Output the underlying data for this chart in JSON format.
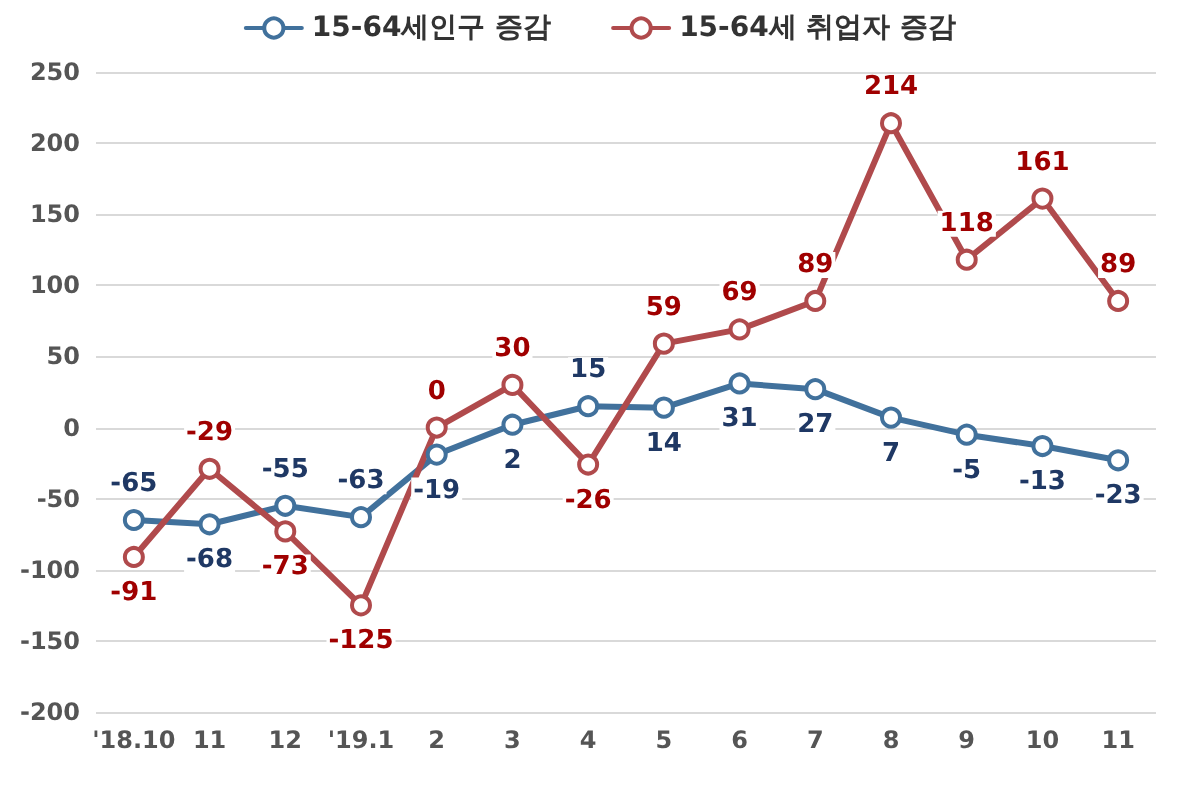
{
  "chart_data": {
    "type": "line",
    "categories": [
      "'18.10",
      "11",
      "12",
      "'19.1",
      "2",
      "3",
      "4",
      "5",
      "6",
      "7",
      "8",
      "9",
      "10",
      "11"
    ],
    "series": [
      {
        "name": "15-64세인구 증감",
        "color": "#41719c",
        "values": [
          -65,
          -68,
          -55,
          -63,
          -19,
          2,
          15,
          14,
          31,
          27,
          7,
          -5,
          -13,
          -23
        ]
      },
      {
        "name": "15-64세 취업자 증감",
        "color": "#b04a4c",
        "values": [
          -91,
          -29,
          -73,
          -125,
          0,
          30,
          -26,
          59,
          69,
          89,
          214,
          118,
          161,
          89
        ]
      }
    ],
    "ylim": [
      -200,
      250
    ],
    "yticks": [
      -200,
      -150,
      -100,
      -50,
      0,
      50,
      100,
      150,
      200,
      250
    ],
    "grid": "y",
    "legend": "top",
    "marker": "circle",
    "line_style": "solid",
    "data_labels": true
  }
}
